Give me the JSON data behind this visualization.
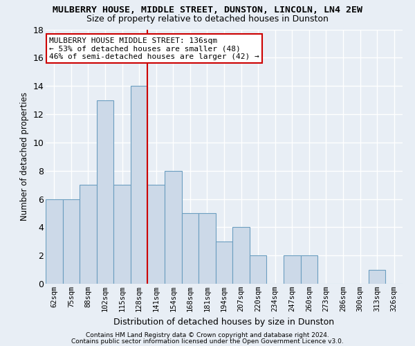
{
  "title": "MULBERRY HOUSE, MIDDLE STREET, DUNSTON, LINCOLN, LN4 2EW",
  "subtitle": "Size of property relative to detached houses in Dunston",
  "xlabel": "Distribution of detached houses by size in Dunston",
  "ylabel": "Number of detached properties",
  "categories": [
    "62sqm",
    "75sqm",
    "88sqm",
    "102sqm",
    "115sqm",
    "128sqm",
    "141sqm",
    "154sqm",
    "168sqm",
    "181sqm",
    "194sqm",
    "207sqm",
    "220sqm",
    "234sqm",
    "247sqm",
    "260sqm",
    "273sqm",
    "286sqm",
    "300sqm",
    "313sqm",
    "326sqm"
  ],
  "values": [
    6,
    6,
    7,
    13,
    7,
    14,
    7,
    8,
    5,
    5,
    3,
    4,
    2,
    0,
    2,
    2,
    0,
    0,
    0,
    1,
    0
  ],
  "bar_color": "#ccd9e8",
  "bar_edge_color": "#6b9ec0",
  "vline_x_index": 5.5,
  "vline_color": "#cc0000",
  "annotation_text": "MULBERRY HOUSE MIDDLE STREET: 136sqm\n← 53% of detached houses are smaller (48)\n46% of semi-detached houses are larger (42) →",
  "annotation_box_color": "white",
  "annotation_box_edge": "#cc0000",
  "ylim": [
    0,
    18
  ],
  "yticks": [
    0,
    2,
    4,
    6,
    8,
    10,
    12,
    14,
    16,
    18
  ],
  "footer1": "Contains HM Land Registry data © Crown copyright and database right 2024.",
  "footer2": "Contains public sector information licensed under the Open Government Licence v3.0.",
  "bg_color": "#e8eef5",
  "grid_color": "#ffffff"
}
